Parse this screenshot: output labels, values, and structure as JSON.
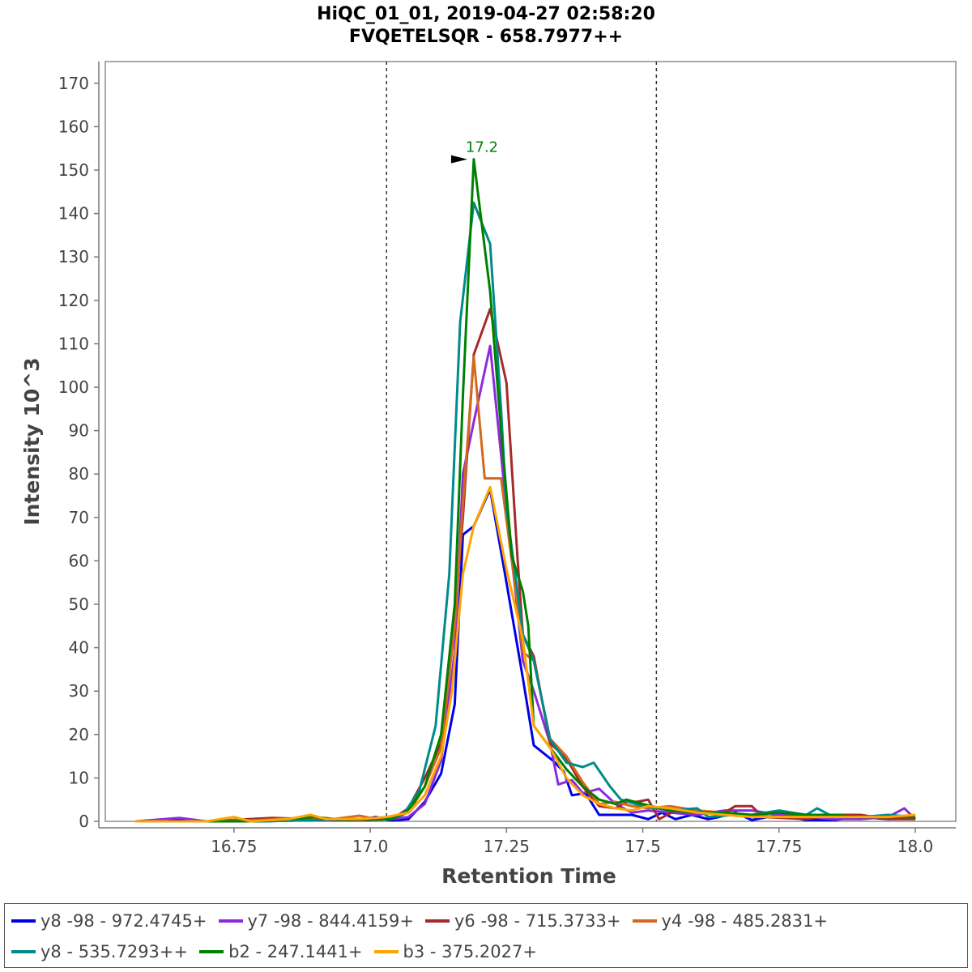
{
  "chart_data": {
    "type": "line",
    "title": "HiQC_01_01, 2019-04-27 02:58:20",
    "subtitle": "FVQETELSQR - 658.7977++",
    "xlabel": "Retention Time",
    "ylabel": "Intensity 10^3",
    "xlim": [
      16.55,
      18.02
    ],
    "ylim": [
      0,
      175
    ],
    "x_ticks": [
      16.75,
      17.0,
      17.25,
      17.5,
      17.75,
      18.0
    ],
    "x_tick_labels": [
      "16.75",
      "17.0",
      "17.25",
      "17.5",
      "17.75",
      "18.0"
    ],
    "y_ticks": [
      0,
      10,
      20,
      30,
      40,
      50,
      60,
      70,
      80,
      90,
      100,
      110,
      120,
      130,
      140,
      150,
      160,
      170
    ],
    "y_tick_labels": [
      "0",
      "10",
      "20",
      "30",
      "40",
      "50",
      "60",
      "70",
      "80",
      "90",
      "100",
      "110",
      "120",
      "130",
      "140",
      "150",
      "160",
      "170"
    ],
    "grid": false,
    "legend_position": "bottom",
    "integration_boundaries": [
      17.03,
      17.525
    ],
    "peak_annotation": {
      "x": 17.19,
      "y": 152.5,
      "label": "17.2",
      "color": "#008000"
    },
    "series": [
      {
        "name": "y8 -98 - 972.4745+",
        "color": "#0000e6",
        "points": [
          [
            16.57,
            0
          ],
          [
            16.63,
            0.3
          ],
          [
            16.7,
            0
          ],
          [
            16.8,
            0
          ],
          [
            16.9,
            0.3
          ],
          [
            16.98,
            0.3
          ],
          [
            17.01,
            1.0
          ],
          [
            17.04,
            0.2
          ],
          [
            17.07,
            0.5
          ],
          [
            17.1,
            4.5
          ],
          [
            17.13,
            11
          ],
          [
            17.155,
            27
          ],
          [
            17.17,
            66
          ],
          [
            17.19,
            68
          ],
          [
            17.22,
            76.5
          ],
          [
            17.25,
            55
          ],
          [
            17.28,
            33
          ],
          [
            17.3,
            17.5
          ],
          [
            17.335,
            14
          ],
          [
            17.355,
            11.5
          ],
          [
            17.37,
            6
          ],
          [
            17.395,
            6.5
          ],
          [
            17.42,
            1.5
          ],
          [
            17.45,
            1.5
          ],
          [
            17.48,
            1.5
          ],
          [
            17.51,
            0.5
          ],
          [
            17.535,
            2.0
          ],
          [
            17.56,
            0.5
          ],
          [
            17.59,
            1.5
          ],
          [
            17.62,
            0.5
          ],
          [
            17.64,
            1.0
          ],
          [
            17.67,
            2.0
          ],
          [
            17.7,
            0.3
          ],
          [
            17.75,
            1.5
          ],
          [
            17.8,
            0.3
          ],
          [
            17.85,
            0.3
          ],
          [
            17.9,
            1.0
          ],
          [
            17.95,
            0.5
          ],
          [
            18.0,
            1.0
          ]
        ]
      },
      {
        "name": "y7 -98 - 844.4159+",
        "color": "#8a2be2",
        "points": [
          [
            16.57,
            0
          ],
          [
            16.65,
            0.8
          ],
          [
            16.7,
            0
          ],
          [
            16.8,
            0.3
          ],
          [
            16.9,
            0.3
          ],
          [
            16.98,
            0.5
          ],
          [
            17.04,
            0.5
          ],
          [
            17.07,
            1.0
          ],
          [
            17.1,
            4.0
          ],
          [
            17.13,
            14
          ],
          [
            17.155,
            39
          ],
          [
            17.17,
            80
          ],
          [
            17.19,
            92
          ],
          [
            17.22,
            109.5
          ],
          [
            17.25,
            72
          ],
          [
            17.28,
            37
          ],
          [
            17.3,
            30
          ],
          [
            17.33,
            18
          ],
          [
            17.345,
            8.5
          ],
          [
            17.37,
            9.5
          ],
          [
            17.39,
            6.5
          ],
          [
            17.42,
            7.5
          ],
          [
            17.45,
            4.0
          ],
          [
            17.48,
            2.0
          ],
          [
            17.51,
            2.5
          ],
          [
            17.55,
            2.0
          ],
          [
            17.6,
            1.5
          ],
          [
            17.65,
            2.5
          ],
          [
            17.7,
            2.5
          ],
          [
            17.75,
            1.5
          ],
          [
            17.8,
            1.0
          ],
          [
            17.85,
            0.5
          ],
          [
            17.9,
            0.5
          ],
          [
            17.95,
            1.0
          ],
          [
            17.98,
            3.0
          ],
          [
            18.0,
            0.5
          ]
        ]
      },
      {
        "name": "y6 -98 - 715.3733+",
        "color": "#a52a2a",
        "points": [
          [
            16.57,
            0
          ],
          [
            16.7,
            0
          ],
          [
            16.82,
            0.8
          ],
          [
            16.9,
            0.5
          ],
          [
            16.98,
            0.3
          ],
          [
            17.04,
            0.5
          ],
          [
            17.07,
            3.0
          ],
          [
            17.1,
            10
          ],
          [
            17.13,
            18
          ],
          [
            17.155,
            47
          ],
          [
            17.17,
            70
          ],
          [
            17.19,
            107.5
          ],
          [
            17.22,
            118
          ],
          [
            17.25,
            101
          ],
          [
            17.27,
            61
          ],
          [
            17.28,
            43
          ],
          [
            17.3,
            38
          ],
          [
            17.33,
            18
          ],
          [
            17.36,
            14.5
          ],
          [
            17.39,
            8.0
          ],
          [
            17.42,
            3.5
          ],
          [
            17.45,
            3.0
          ],
          [
            17.47,
            4.5
          ],
          [
            17.49,
            4.5
          ],
          [
            17.51,
            5.0
          ],
          [
            17.53,
            0.5
          ],
          [
            17.56,
            2.5
          ],
          [
            17.6,
            2.0
          ],
          [
            17.65,
            2.0
          ],
          [
            17.67,
            3.5
          ],
          [
            17.7,
            3.5
          ],
          [
            17.72,
            1.0
          ],
          [
            17.8,
            0.5
          ],
          [
            17.85,
            1.5
          ],
          [
            17.9,
            1.5
          ],
          [
            17.95,
            0.5
          ],
          [
            18.0,
            0.5
          ]
        ]
      },
      {
        "name": "y4 -98 - 485.2831+",
        "color": "#d2691e",
        "points": [
          [
            16.57,
            0
          ],
          [
            16.7,
            0
          ],
          [
            16.8,
            0.3
          ],
          [
            16.87,
            0.8
          ],
          [
            16.92,
            0.3
          ],
          [
            16.98,
            1.3
          ],
          [
            17.02,
            0.3
          ],
          [
            17.07,
            2.0
          ],
          [
            17.1,
            8.0
          ],
          [
            17.13,
            17
          ],
          [
            17.155,
            45
          ],
          [
            17.17,
            73
          ],
          [
            17.19,
            107
          ],
          [
            17.21,
            79
          ],
          [
            17.24,
            79
          ],
          [
            17.27,
            50
          ],
          [
            17.28,
            39
          ],
          [
            17.3,
            37
          ],
          [
            17.33,
            19
          ],
          [
            17.36,
            15
          ],
          [
            17.39,
            9.0
          ],
          [
            17.42,
            4.0
          ],
          [
            17.45,
            4.5
          ],
          [
            17.48,
            3.5
          ],
          [
            17.51,
            3.0
          ],
          [
            17.55,
            3.5
          ],
          [
            17.6,
            2.5
          ],
          [
            17.65,
            2.0
          ],
          [
            17.7,
            1.5
          ],
          [
            17.75,
            1.0
          ],
          [
            17.8,
            1.0
          ],
          [
            17.85,
            1.5
          ],
          [
            17.9,
            1.0
          ],
          [
            17.95,
            1.0
          ],
          [
            18.0,
            1.0
          ]
        ]
      },
      {
        "name": "y8 - 535.7293++",
        "color": "#008b8b",
        "points": [
          [
            16.57,
            0
          ],
          [
            16.7,
            0
          ],
          [
            16.8,
            0
          ],
          [
            16.9,
            0.3
          ],
          [
            16.98,
            0.5
          ],
          [
            17.03,
            0.5
          ],
          [
            17.06,
            1.5
          ],
          [
            17.09,
            7.0
          ],
          [
            17.12,
            22
          ],
          [
            17.145,
            57
          ],
          [
            17.165,
            115
          ],
          [
            17.19,
            142.5
          ],
          [
            17.22,
            133
          ],
          [
            17.24,
            95
          ],
          [
            17.25,
            72
          ],
          [
            17.27,
            53
          ],
          [
            17.28,
            43
          ],
          [
            17.3,
            37
          ],
          [
            17.33,
            19
          ],
          [
            17.36,
            13.5
          ],
          [
            17.39,
            12.5
          ],
          [
            17.41,
            13.5
          ],
          [
            17.44,
            8.0
          ],
          [
            17.46,
            5.0
          ],
          [
            17.5,
            3.5
          ],
          [
            17.55,
            2.5
          ],
          [
            17.6,
            3.0
          ],
          [
            17.62,
            1.0
          ],
          [
            17.67,
            1.5
          ],
          [
            17.7,
            1.5
          ],
          [
            17.75,
            2.5
          ],
          [
            17.8,
            1.5
          ],
          [
            17.82,
            3.0
          ],
          [
            17.85,
            1.0
          ],
          [
            17.9,
            1.0
          ],
          [
            17.95,
            1.5
          ],
          [
            18.0,
            1.0
          ]
        ]
      },
      {
        "name": "b2 - 247.1441+",
        "color": "#008000",
        "points": [
          [
            16.57,
            0
          ],
          [
            16.7,
            0
          ],
          [
            16.8,
            0
          ],
          [
            16.9,
            1.0
          ],
          [
            16.95,
            0.3
          ],
          [
            17.0,
            0.5
          ],
          [
            17.04,
            0.5
          ],
          [
            17.07,
            2.5
          ],
          [
            17.1,
            8.0
          ],
          [
            17.13,
            20
          ],
          [
            17.155,
            50
          ],
          [
            17.17,
            98
          ],
          [
            17.19,
            152.5
          ],
          [
            17.22,
            122
          ],
          [
            17.24,
            90
          ],
          [
            17.26,
            61
          ],
          [
            17.28,
            53
          ],
          [
            17.29,
            45
          ],
          [
            17.3,
            22
          ],
          [
            17.33,
            17
          ],
          [
            17.36,
            12
          ],
          [
            17.39,
            8.0
          ],
          [
            17.42,
            5.0
          ],
          [
            17.45,
            4.0
          ],
          [
            17.47,
            5.0
          ],
          [
            17.5,
            4.0
          ],
          [
            17.55,
            2.5
          ],
          [
            17.6,
            2.0
          ],
          [
            17.65,
            2.0
          ],
          [
            17.7,
            1.5
          ],
          [
            17.75,
            2.0
          ],
          [
            17.8,
            1.5
          ],
          [
            17.85,
            1.5
          ],
          [
            17.9,
            1.0
          ],
          [
            17.95,
            1.0
          ],
          [
            18.0,
            1.0
          ]
        ]
      },
      {
        "name": "b3 - 375.2027+",
        "color": "#ffa500",
        "points": [
          [
            16.57,
            0
          ],
          [
            16.7,
            0
          ],
          [
            16.75,
            1.0
          ],
          [
            16.78,
            0
          ],
          [
            16.85,
            0.5
          ],
          [
            16.89,
            1.5
          ],
          [
            16.92,
            0.5
          ],
          [
            16.98,
            0.5
          ],
          [
            17.03,
            1.0
          ],
          [
            17.07,
            2.0
          ],
          [
            17.1,
            6.0
          ],
          [
            17.13,
            15
          ],
          [
            17.15,
            30
          ],
          [
            17.17,
            57
          ],
          [
            17.19,
            68
          ],
          [
            17.22,
            77
          ],
          [
            17.25,
            58
          ],
          [
            17.28,
            42
          ],
          [
            17.3,
            22
          ],
          [
            17.33,
            17
          ],
          [
            17.36,
            10
          ],
          [
            17.39,
            6.0
          ],
          [
            17.42,
            4.0
          ],
          [
            17.45,
            3.0
          ],
          [
            17.48,
            2.5
          ],
          [
            17.51,
            3.5
          ],
          [
            17.55,
            3.0
          ],
          [
            17.6,
            2.0
          ],
          [
            17.65,
            1.5
          ],
          [
            17.7,
            1.0
          ],
          [
            17.75,
            1.0
          ],
          [
            17.8,
            1.0
          ],
          [
            17.85,
            1.0
          ],
          [
            17.9,
            1.0
          ],
          [
            17.95,
            1.0
          ],
          [
            18.0,
            1.5
          ]
        ]
      }
    ]
  }
}
